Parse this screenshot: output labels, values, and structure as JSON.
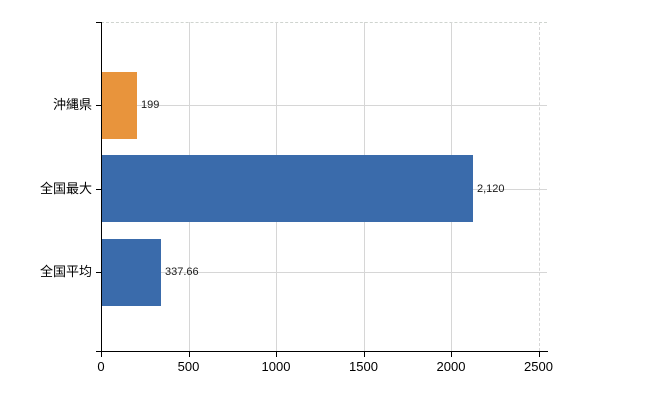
{
  "chart_data": {
    "type": "bar",
    "orientation": "horizontal",
    "categories": [
      "沖縄県",
      "全国最大",
      "全国平均"
    ],
    "values": [
      199,
      2120,
      337.66
    ],
    "value_labels": [
      "199",
      "2,120",
      "337.66"
    ],
    "bar_colors": [
      "#e8943c",
      "#3a6bab",
      "#3a6bab"
    ],
    "xlim": [
      0,
      2500
    ],
    "xticks": [
      0,
      500,
      1000,
      1500,
      2000,
      2500
    ],
    "xtick_labels": [
      "0",
      "500",
      "1000",
      "1500",
      "2000",
      "2500"
    ],
    "grid": true,
    "legend": false,
    "colors": {
      "orange_bar": "#e8943c",
      "blue_bar": "#3a6bab",
      "gridline": "#d6d6d6",
      "axis": "#000000",
      "text": "#1a1a1a",
      "background": "#ffffff"
    }
  }
}
